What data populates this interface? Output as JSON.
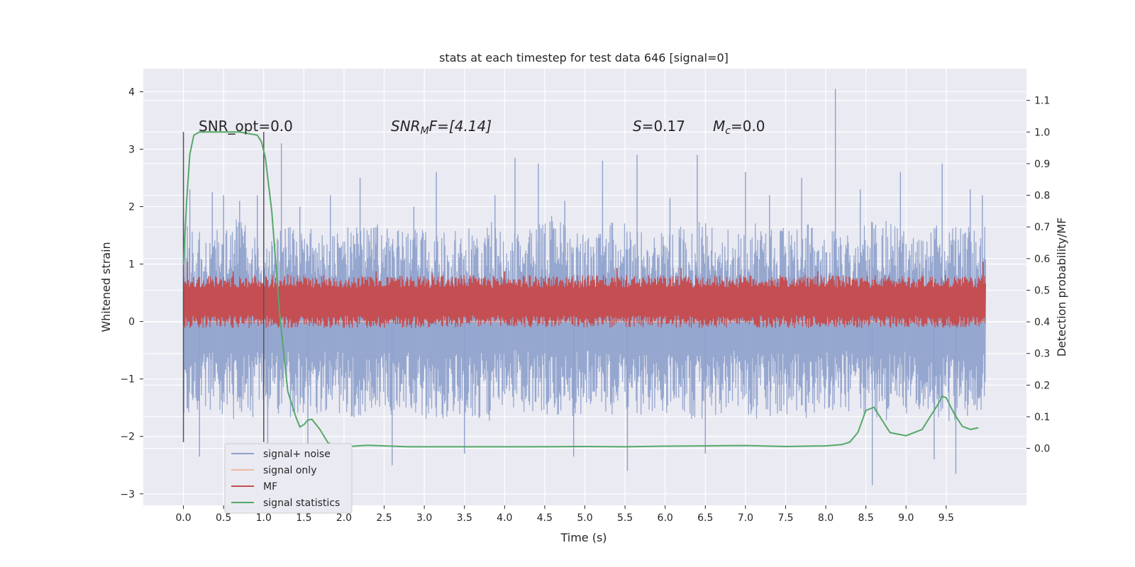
{
  "chart_data": {
    "type": "line",
    "title": "stats at each timestep for test data 646 [signal=0]",
    "xlabel": "Time (s)",
    "ylabel": "Whitened strain",
    "ylabel_right": "Detection probability/MF",
    "xlim": [
      -0.5,
      10.5
    ],
    "ylim": [
      -3.2,
      4.4
    ],
    "ylim_right": [
      -0.18,
      1.2
    ],
    "x_ticks": [
      "0.0",
      "0.5",
      "1.0",
      "1.5",
      "2.0",
      "2.5",
      "3.0",
      "3.5",
      "4.0",
      "4.5",
      "5.0",
      "5.5",
      "6.0",
      "6.5",
      "7.0",
      "7.5",
      "8.0",
      "8.5",
      "9.0",
      "9.5"
    ],
    "y_ticks": [
      "−3",
      "−2",
      "−1",
      "0",
      "1",
      "2",
      "3",
      "4"
    ],
    "y_ticks_right": [
      "0.0",
      "0.1",
      "0.2",
      "0.3",
      "0.4",
      "0.5",
      "0.6",
      "0.7",
      "0.8",
      "0.9",
      "1.0",
      "1.1"
    ],
    "grid": true,
    "legend_position": "lower-left",
    "annotations": {
      "snr_opt": "SNR_opt=0.0",
      "snr_mf_prefix": "SNR",
      "snr_mf_sub": "M",
      "snr_mf_suffix": "F=[4.14]",
      "s_prefix": "S",
      "s_suffix": "=0.17",
      "mc_prefix": "M",
      "mc_sub": "c",
      "mc_suffix": "=0.0"
    },
    "markers": [
      {
        "x": 0.0,
        "y_top": 3.3
      },
      {
        "x": 1.0,
        "y_top": 3.3
      }
    ],
    "series": [
      {
        "name": "signal+ noise",
        "color": "#8da0cb",
        "axis": "left",
        "x_range": [
          0.0,
          9.99
        ],
        "envelope_upper": [
          1.6,
          1.4,
          1.5,
          1.7,
          1.4,
          1.5,
          1.6,
          1.4,
          1.5,
          1.6,
          1.5,
          1.4,
          1.6,
          1.5,
          1.5,
          1.6,
          1.4,
          1.5,
          1.7,
          1.5,
          1.4,
          1.6,
          1.5,
          1.4,
          1.5,
          1.6,
          1.5,
          1.4,
          1.6,
          1.5,
          1.5,
          1.6,
          1.4,
          1.5,
          1.7,
          1.5,
          1.4,
          1.6,
          1.5,
          1.6
        ],
        "envelope_lower": [
          -1.5,
          -1.4,
          -1.5,
          -1.6,
          -1.4,
          -1.5,
          -1.6,
          -1.4,
          -1.5,
          -1.6,
          -1.5,
          -1.4,
          -1.6,
          -1.5,
          -1.5,
          -1.6,
          -1.4,
          -1.5,
          -1.6,
          -1.5,
          -1.4,
          -1.6,
          -1.5,
          -1.4,
          -1.5,
          -1.6,
          -1.5,
          -1.4,
          -1.6,
          -1.5,
          -1.5,
          -1.6,
          -1.4,
          -1.5,
          -1.6,
          -1.5,
          -1.4,
          -1.6,
          -1.5,
          -1.5
        ],
        "peaks": [
          {
            "x": 0.0,
            "y": 1.8
          },
          {
            "x": 0.08,
            "y": 2.3
          },
          {
            "x": 0.2,
            "y": -2.35
          },
          {
            "x": 0.36,
            "y": 2.25
          },
          {
            "x": 0.5,
            "y": 2.2
          },
          {
            "x": 0.7,
            "y": 2.1
          },
          {
            "x": 0.92,
            "y": 2.2
          },
          {
            "x": 1.05,
            "y": -2.3
          },
          {
            "x": 1.22,
            "y": 3.1
          },
          {
            "x": 1.45,
            "y": 2.0
          },
          {
            "x": 1.55,
            "y": -2.5
          },
          {
            "x": 1.83,
            "y": 2.2
          },
          {
            "x": 2.2,
            "y": 2.5
          },
          {
            "x": 2.6,
            "y": -2.5
          },
          {
            "x": 2.87,
            "y": 2.0
          },
          {
            "x": 3.15,
            "y": 2.6
          },
          {
            "x": 3.5,
            "y": -2.3
          },
          {
            "x": 3.88,
            "y": 2.2
          },
          {
            "x": 4.13,
            "y": 2.85
          },
          {
            "x": 4.42,
            "y": 2.75
          },
          {
            "x": 4.75,
            "y": 2.1
          },
          {
            "x": 4.86,
            "y": -2.35
          },
          {
            "x": 5.22,
            "y": 2.8
          },
          {
            "x": 5.53,
            "y": -2.6
          },
          {
            "x": 5.65,
            "y": 2.9
          },
          {
            "x": 6.06,
            "y": 2.15
          },
          {
            "x": 6.4,
            "y": 2.9
          },
          {
            "x": 6.5,
            "y": -2.3
          },
          {
            "x": 7.0,
            "y": 2.6
          },
          {
            "x": 7.3,
            "y": 2.2
          },
          {
            "x": 7.7,
            "y": 2.5
          },
          {
            "x": 8.12,
            "y": 4.05
          },
          {
            "x": 8.43,
            "y": 2.3
          },
          {
            "x": 8.58,
            "y": -2.85
          },
          {
            "x": 8.93,
            "y": 2.6
          },
          {
            "x": 9.35,
            "y": -2.4
          },
          {
            "x": 9.45,
            "y": 2.75
          },
          {
            "x": 9.62,
            "y": -2.65
          },
          {
            "x": 9.8,
            "y": 2.3
          },
          {
            "x": 9.95,
            "y": 2.2
          }
        ]
      },
      {
        "name": "signal only",
        "color": "#f0b8a0",
        "axis": "left",
        "x": [
          0.0,
          9.99
        ],
        "y": [
          0.0,
          0.0
        ]
      },
      {
        "name": "MF",
        "color": "#c44e52",
        "axis": "right",
        "x_range": [
          0.0,
          9.99
        ],
        "base_level": 0.45,
        "band_upper": 0.52,
        "band_lower": 0.4,
        "peaks": [
          {
            "x": 0.05,
            "y": 0.59
          },
          {
            "x": 0.62,
            "y": 0.56
          },
          {
            "x": 1.3,
            "y": 0.55
          },
          {
            "x": 2.4,
            "y": 0.56
          },
          {
            "x": 3.1,
            "y": 0.55
          },
          {
            "x": 4.0,
            "y": 0.56
          },
          {
            "x": 5.4,
            "y": 0.57
          },
          {
            "x": 6.2,
            "y": 0.57
          },
          {
            "x": 7.9,
            "y": 0.56
          },
          {
            "x": 9.96,
            "y": 0.59
          }
        ]
      },
      {
        "name": "signal statistics",
        "color": "#55a868",
        "axis": "right",
        "x": [
          0.0,
          0.04,
          0.08,
          0.13,
          0.2,
          0.3,
          0.5,
          0.7,
          0.92,
          0.97,
          1.02,
          1.1,
          1.2,
          1.3,
          1.4,
          1.45,
          1.5,
          1.55,
          1.6,
          1.7,
          1.8,
          1.9,
          2.0,
          2.3,
          2.8,
          3.5,
          4.3,
          5.0,
          5.5,
          6.0,
          6.5,
          7.0,
          7.5,
          8.0,
          8.2,
          8.3,
          8.4,
          8.5,
          8.6,
          8.7,
          8.8,
          9.0,
          9.2,
          9.3,
          9.4,
          9.45,
          9.5,
          9.6,
          9.7,
          9.8,
          9.9
        ],
        "y": [
          0.58,
          0.78,
          0.93,
          0.99,
          1.0,
          1.0,
          1.0,
          1.0,
          0.99,
          0.97,
          0.92,
          0.75,
          0.42,
          0.18,
          0.1,
          0.068,
          0.075,
          0.09,
          0.092,
          0.06,
          0.018,
          0.005,
          0.005,
          0.01,
          0.005,
          0.005,
          0.005,
          0.006,
          0.005,
          0.007,
          0.008,
          0.009,
          0.006,
          0.008,
          0.012,
          0.02,
          0.05,
          0.12,
          0.13,
          0.09,
          0.05,
          0.04,
          0.06,
          0.1,
          0.14,
          0.165,
          0.16,
          0.11,
          0.07,
          0.06,
          0.065
        ]
      }
    ]
  }
}
